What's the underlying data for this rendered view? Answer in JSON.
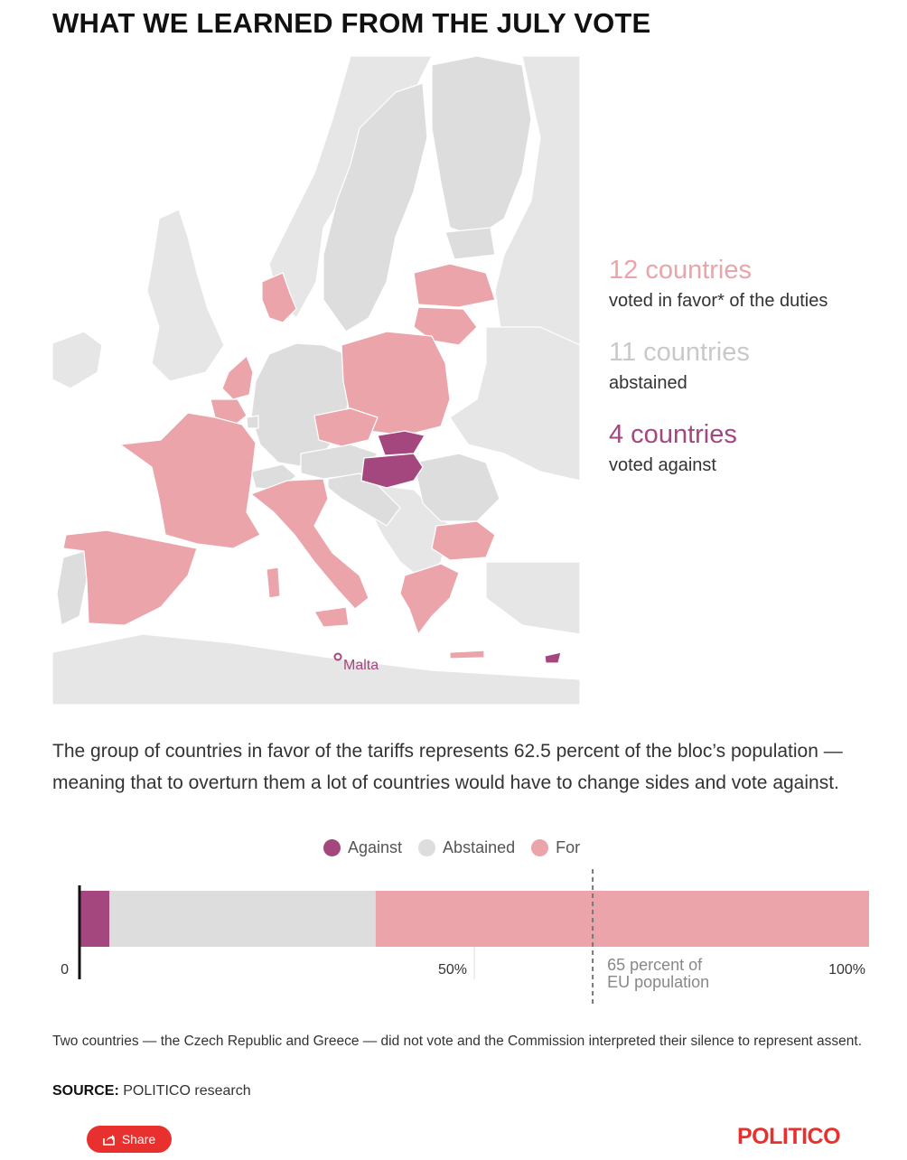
{
  "title": "WHAT WE LEARNED FROM THE JULY VOTE",
  "colors": {
    "for": "#eba4a9",
    "abstained": "#dddddd",
    "against": "#a5477f",
    "land": "#e6e6e6",
    "brand": "#e8312f"
  },
  "map": {
    "malta_label": "Malta"
  },
  "stats": [
    {
      "count": "12 countries",
      "desc": "voted in favor* of the duties"
    },
    {
      "count": "11 countries",
      "desc": "abstained"
    },
    {
      "count": "4 countries",
      "desc": "voted against"
    }
  ],
  "intro": "The group of countries in favor of the tariffs represents 62.5 percent of the bloc’s population — meaning that to overturn them a lot of countries would have to change sides and vote against.",
  "chart_data": {
    "type": "bar",
    "orientation": "horizontal-stacked",
    "series": [
      {
        "name": "Against",
        "value": 3.8
      },
      {
        "name": "Abstained",
        "value": 33.7
      },
      {
        "name": "For",
        "value": 62.5
      }
    ],
    "legend": [
      "Against",
      "Abstained",
      "For"
    ],
    "legend_position": "top",
    "xlim": [
      0,
      100
    ],
    "ticks": [
      {
        "value": 0,
        "label": "0"
      },
      {
        "value": 50,
        "label": "50%"
      },
      {
        "value": 100,
        "label": "100%"
      }
    ],
    "threshold": {
      "value": 65,
      "label_line1": "65 percent of",
      "label_line2": "EU population"
    }
  },
  "footnote": "Two countries — the Czech Republic and Greece — did not vote and the Commission interpreted their silence to represent assent.",
  "source": {
    "label": "SOURCE:",
    "text": "POLITICO research"
  },
  "share_label": "Share",
  "brand": "POLITICO"
}
